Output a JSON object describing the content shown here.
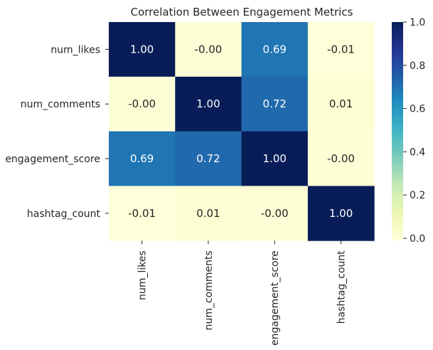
{
  "chart_data": {
    "type": "heatmap",
    "title": "Correlation Between Engagement Metrics",
    "xlabel": "",
    "ylabel": "",
    "row_labels": [
      "num_likes",
      "num_comments",
      "engagement_score",
      "hashtag_count"
    ],
    "col_labels": [
      "num_likes",
      "num_comments",
      "engagement_score",
      "hashtag_count"
    ],
    "values": [
      [
        1.0,
        -0.0,
        0.69,
        -0.01
      ],
      [
        -0.0,
        1.0,
        0.72,
        0.01
      ],
      [
        0.69,
        0.72,
        1.0,
        -0.0
      ],
      [
        -0.01,
        0.01,
        -0.0,
        1.0
      ]
    ],
    "value_labels": [
      [
        "1.00",
        "-0.00",
        "0.69",
        "-0.01"
      ],
      [
        "-0.00",
        "1.00",
        "0.72",
        "0.01"
      ],
      [
        "0.69",
        "0.72",
        "1.00",
        "-0.00"
      ],
      [
        "-0.01",
        "0.01",
        "-0.00",
        "1.00"
      ]
    ],
    "colorbar": {
      "colormap": "YlGnBu",
      "range": [
        -0.01,
        1.0
      ],
      "ticks": [
        0.0,
        0.2,
        0.4,
        0.6,
        0.8,
        1.0
      ],
      "tick_labels": [
        "0.0",
        "0.2",
        "0.4",
        "0.6",
        "0.8",
        "1.0"
      ]
    },
    "annotation_colors": {
      "dark_cell_text": "#ffffff",
      "light_cell_text": "#262626"
    },
    "grid": false,
    "legend": "colorbar-right"
  }
}
